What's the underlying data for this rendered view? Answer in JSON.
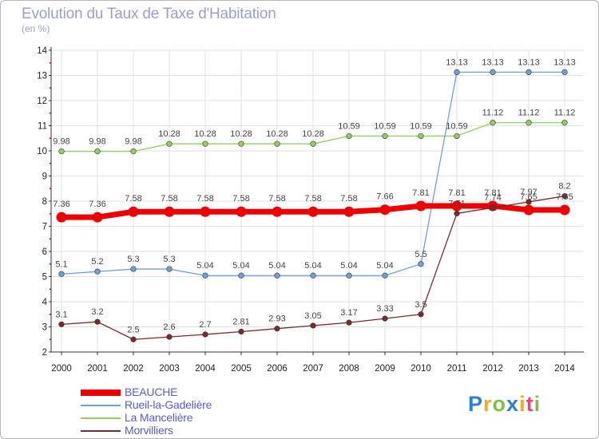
{
  "header": {
    "title": "Evolution du Taux de Taxe d'Habitation",
    "subtitle": "(en %)"
  },
  "logo": {
    "letters": [
      "P",
      "r",
      "o",
      "x",
      "i",
      "t",
      "i"
    ],
    "colors": [
      "#2b7fd6",
      "#f2a81d",
      "#7bc142",
      "#2b7fd6",
      "#f2a81d",
      "#e8457a",
      "#7bc142"
    ]
  },
  "chart_data": {
    "type": "line",
    "x": [
      2000,
      2001,
      2002,
      2003,
      2004,
      2005,
      2006,
      2007,
      2008,
      2009,
      2010,
      2011,
      2012,
      2013,
      2014
    ],
    "ylim": [
      2,
      14
    ],
    "yticks": [
      2,
      3,
      4,
      5,
      6,
      7,
      8,
      9,
      10,
      11,
      12,
      13,
      14
    ],
    "grid": true,
    "legend_position": "bottom-left",
    "series": [
      {
        "name": "BEAUCHE",
        "color": "#ee0000",
        "values": [
          7.36,
          7.36,
          7.58,
          7.58,
          7.58,
          7.58,
          7.58,
          7.58,
          7.58,
          7.66,
          7.81,
          7.81,
          7.81,
          7.65,
          7.65
        ],
        "labels": [
          "7.36",
          "7.36",
          "7.58",
          "7.58",
          "7.58",
          "7.58",
          "7.58",
          "7.58",
          "7.58",
          "7.66",
          "7.81",
          "7.81",
          "7.81",
          "7.65",
          "7.65"
        ]
      },
      {
        "name": "Rueil-la-Gadelière",
        "color": "#6fa0d8",
        "values": [
          5.1,
          5.2,
          5.3,
          5.3,
          5.04,
          5.04,
          5.04,
          5.04,
          5.04,
          5.04,
          5.5,
          13.13,
          13.13,
          13.13,
          13.13
        ],
        "labels": [
          "5.1",
          "5.2",
          "5.3",
          "5.3",
          "5.04",
          "5.04",
          "5.04",
          "5.04",
          "5.04",
          "5.04",
          "5.5",
          "13.13",
          "13.13",
          "13.13",
          "13.13"
        ]
      },
      {
        "name": "La Mancelière",
        "color": "#90d060",
        "values": [
          9.98,
          9.98,
          9.98,
          10.28,
          10.28,
          10.28,
          10.28,
          10.28,
          10.59,
          10.59,
          10.59,
          10.59,
          11.12,
          11.12,
          11.12
        ],
        "labels": [
          "9.98",
          "9.98",
          "9.98",
          "10.28",
          "10.28",
          "10.28",
          "10.28",
          "10.28",
          "10.59",
          "10.59",
          "10.59",
          "10.59",
          "11.12",
          "11.12",
          "11.12"
        ]
      },
      {
        "name": "Morvilliers",
        "color": "#7a2a2a",
        "values": [
          3.1,
          3.2,
          2.5,
          2.6,
          2.7,
          2.81,
          2.93,
          3.05,
          3.17,
          3.33,
          3.5,
          7.51,
          7.74,
          7.97,
          8.2
        ],
        "labels": [
          "3.1",
          "3.2",
          "2.5",
          "2.6",
          "2.7",
          "2.81",
          "2.93",
          "3.05",
          "3.17",
          "3.33",
          "3.5",
          "7.51",
          "7.74",
          "7.97",
          "8.2"
        ]
      }
    ]
  }
}
